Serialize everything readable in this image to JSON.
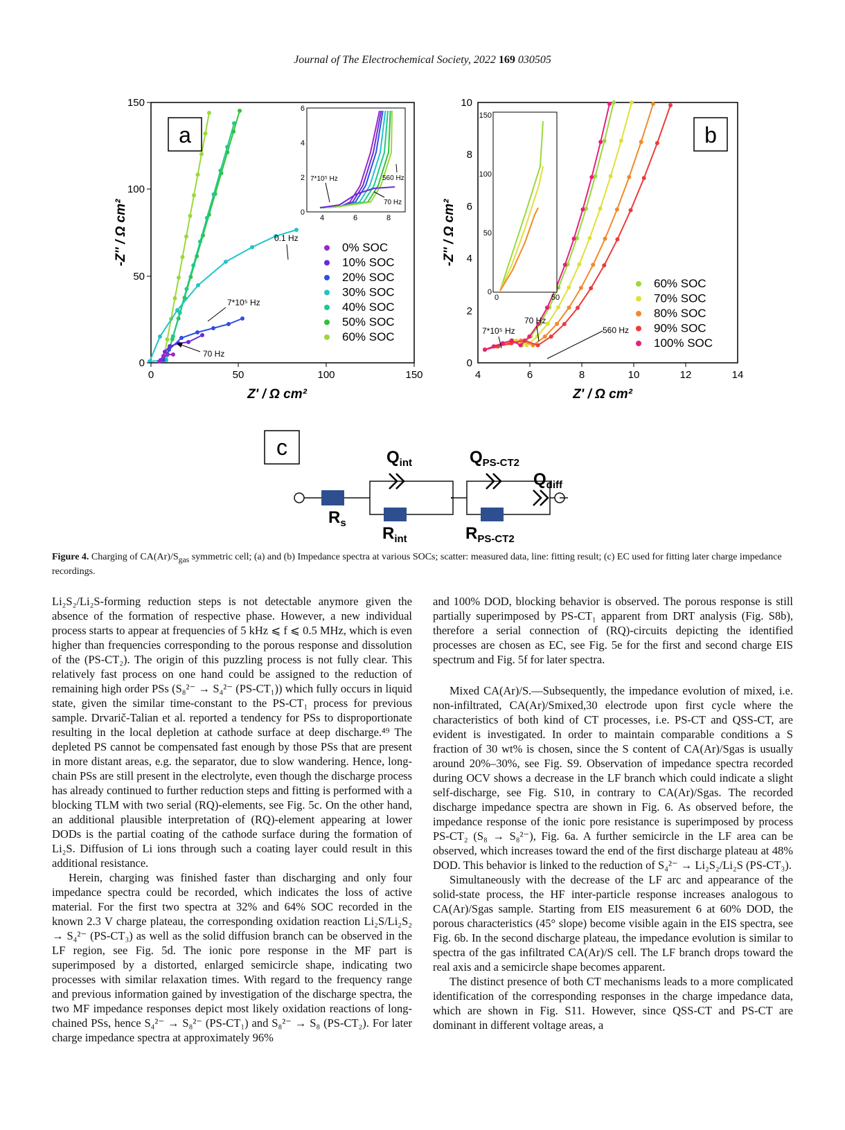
{
  "header": {
    "journal": "Journal of The Electrochemical Society",
    "year": "2022",
    "volume": "169",
    "article": "030505"
  },
  "figure": {
    "panel_a": {
      "label": "a",
      "xlabel": "Z' / Ω cm²",
      "ylabel": "-Z'' / Ω cm²",
      "xticks": [
        "0",
        "50",
        "100",
        "150"
      ],
      "yticks": [
        "0",
        "50",
        "100",
        "150"
      ],
      "annotations": [
        "0.1 Hz",
        "7*10⁵ Hz",
        "70 Hz"
      ],
      "inset": {
        "xticks": [
          "4",
          "6",
          "8"
        ],
        "yticks": [
          "0",
          "2",
          "4",
          "6"
        ],
        "annotations": [
          "7*10⁵ Hz",
          "560 Hz",
          "70 Hz"
        ]
      },
      "legend": [
        "0% SOC",
        "10% SOC",
        "20% SOC",
        "30% SOC",
        "40% SOC",
        "50% SOC",
        "60% SOC"
      ]
    },
    "panel_b": {
      "label": "b",
      "xlabel": "Z' / Ω cm²",
      "ylabel": "-Z'' / Ω cm²",
      "xticks": [
        "4",
        "6",
        "8",
        "10",
        "12",
        "14"
      ],
      "yticks": [
        "0",
        "2",
        "4",
        "6",
        "8",
        "10"
      ],
      "annotations": [
        "7*10⁵ Hz",
        "70 Hz",
        "560 Hz"
      ],
      "inset": {
        "xticks": [
          "0",
          "50"
        ],
        "yticks": [
          "0",
          "50",
          "100",
          "150"
        ]
      },
      "legend": [
        "60% SOC",
        "70% SOC",
        "80% SOC",
        "90% SOC",
        "100% SOC"
      ]
    },
    "panel_c": {
      "label": "c",
      "elements": [
        "Q",
        "int",
        "Q",
        "PS-CT2",
        "Q",
        "diff",
        "R",
        "s",
        "R",
        "int",
        "R",
        "PS-CT2"
      ]
    },
    "colors": {
      "s0": "#9b27c9",
      "s1": "#6a2bd6",
      "s2": "#2f4fe0",
      "s3": "#22c3c8",
      "s4": "#20c98a",
      "s5": "#30c23a",
      "s6": "#9ad83a",
      "s7": "#e0df3a",
      "s8": "#f08a2a",
      "s9": "#ee3a3a",
      "s10": "#e81f7a",
      "resistor": "#2e4f8f"
    }
  },
  "caption": {
    "label": "Figure 4.",
    "text_a": "Charging of CA(Ar)/S",
    "sub_gas": "gas",
    "text_b": " symmetric cell; (a) and (b) Impedance spectra at various SOCs; scatter: measured data, line: fitting result; (c) EC used for fitting later charge impedance recordings."
  },
  "left_column": [
    "Li₂S₂/Li₂S-forming reduction steps is not detectable anymore given the absence of the formation of respective phase. However, a new individual process starts to appear at frequencies of 5 kHz ⩽ f ⩽ 0.5 MHz, which is even higher than frequencies corresponding to the porous response and dissolution of the (PS-CT₂). The origin of this puzzling process is not fully clear. This relatively fast process on one hand could be assigned to the reduction of remaining high order PSs (S₈²⁻ → S₄²⁻ (PS-CT₁)) which fully occurs in liquid state, given the similar time-constant to the PS-CT₁ process for previous sample. Drvarič-Talian et al. reported a tendency for PSs to disproportionate resulting in the local depletion at cathode surface at deep discharge.⁴⁹ The depleted PS cannot be compensated fast enough by those PSs that are present in more distant areas, e.g. the separator, due to slow wandering. Hence, long-chain PSs are still present in the electrolyte, even though the discharge process has already continued to further reduction steps and fitting is performed with a blocking TLM with two serial (RQ)-elements, see Fig. 5c. On the other hand, an additional plausible interpretation of (RQ)-element appearing at lower DODs is the partial coating of the cathode surface during the formation of Li₂S. Diffusion of Li ions through such a coating layer could result in this additional resistance.",
    "Herein, charging was finished faster than discharging and only four impedance spectra could be recorded, which indicates the loss of active material. For the first two spectra at 32% and 64% SOC recorded in the known 2.3 V charge plateau, the corresponding oxidation reaction Li₂S/Li₂S₂ → S₄²⁻ (PS-CT₃) as well as the solid diffusion branch can be observed in the LF region, see Fig. 5d. The ionic pore response in the MF part is superimposed by a distorted, enlarged semicircle shape, indicating two processes with similar relaxation times. With regard to the frequency range and previous information gained by investigation of the discharge spectra, the two MF impedance responses depict most likely oxidation reactions of long-chained PSs, hence S₄²⁻ → S₈²⁻ (PS-CT₁) and S₈²⁻ → S₈ (PS-CT₂). For later charge impedance spectra at approximately 96%"
  ],
  "right_column": [
    "and 100% DOD, blocking behavior is observed. The porous response is still partially superimposed by PS-CT₁ apparent from DRT analysis (Fig. S8b), therefore a serial connection of (RQ)-circuits depicting the identified processes are chosen as EC, see Fig. 5e for the first and second charge EIS spectrum and Fig. 5f for later spectra.",
    "Mixed CA(Ar)/S.—Subsequently, the impedance evolution of mixed, i.e. non-infiltrated, CA(Ar)/Smixed,30 electrode upon first cycle where the characteristics of both kind of CT processes, i.e. PS-CT and QSS-CT, are evident is investigated. In order to maintain comparable conditions a S fraction of 30 wt% is chosen, since the S content of CA(Ar)/Sgas is usually around 20%–30%, see Fig. S9. Observation of impedance spectra recorded during OCV shows a decrease in the LF branch which could indicate a slight self-discharge, see Fig. S10, in contrary to CA(Ar)/Sgas. The recorded discharge impedance spectra are shown in Fig. 6. As observed before, the impedance response of the ionic pore resistance is superimposed by process PS-CT₂ (S₈ → S₈²⁻), Fig. 6a. A further semicircle in the LF area can be observed, which increases toward the end of the first discharge plateau at 48% DOD. This behavior is linked to the reduction of S₄²⁻ → Li₂S₂/Li₂S (PS-CT₃).",
    "Simultaneously with the decrease of the LF arc and appearance of the solid-state process, the HF inter-particle response increases analogous to CA(Ar)/Sgas sample. Starting from EIS measurement 6 at 60% DOD, the porous characteristics (45° slope) become visible again in the EIS spectra, see Fig. 6b. In the second discharge plateau, the impedance evolution is similar to spectra of the gas infiltrated CA(Ar)/S cell. The LF branch drops toward the real axis and a semicircle shape becomes apparent.",
    "The distinct presence of both CT mechanisms leads to a more complicated identification of the corresponding responses in the charge impedance data, which are shown in Fig. S11. However, since QSS-CT and PS-CT are dominant in different voltage areas, a"
  ]
}
